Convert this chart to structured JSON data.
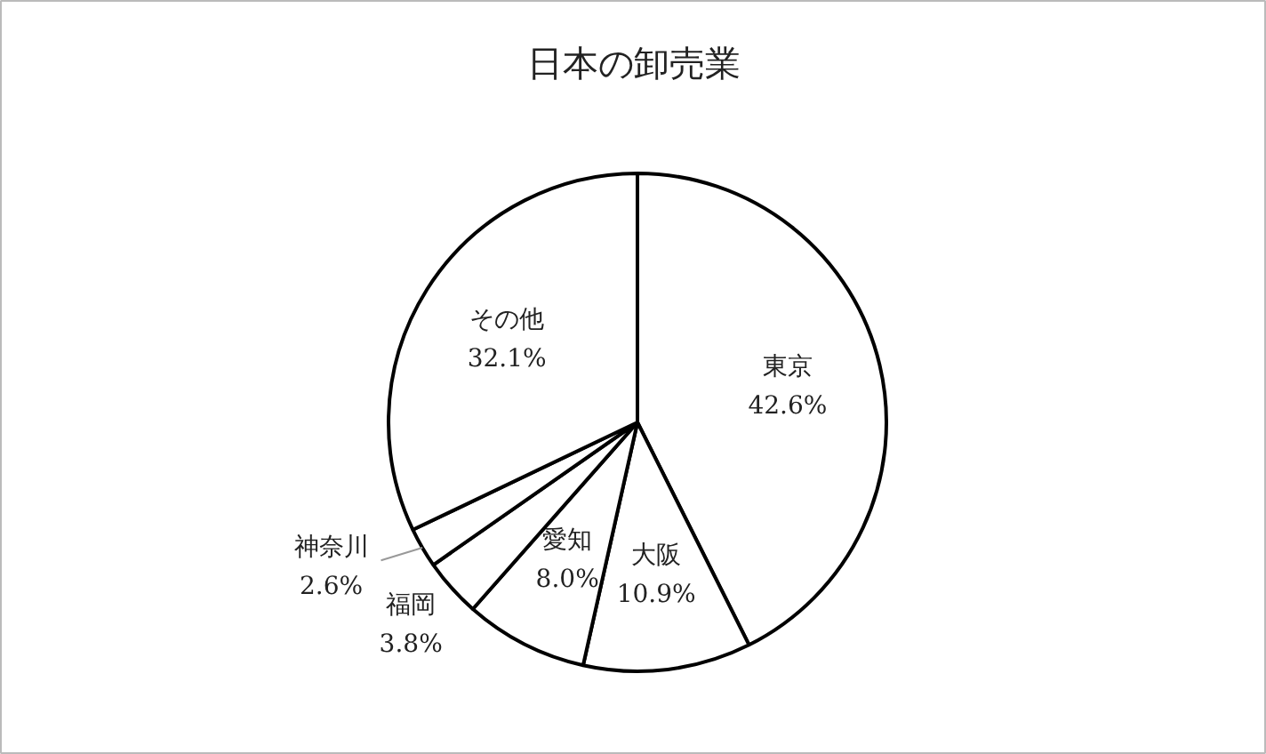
{
  "chart_data": {
    "type": "pie",
    "title": "日本の卸売業",
    "categories": [
      "東京",
      "大阪",
      "愛知",
      "福岡",
      "神奈川",
      "その他"
    ],
    "values": [
      42.6,
      10.9,
      8.0,
      3.8,
      2.6,
      32.1
    ],
    "value_labels": [
      "42.6%",
      "10.9%",
      "8.0%",
      "3.8%",
      "2.6%",
      "32.1%"
    ],
    "colors": [
      "#ffffff",
      "#ffffff",
      "#ffffff",
      "#ffffff",
      "#ffffff",
      "#ffffff"
    ]
  }
}
